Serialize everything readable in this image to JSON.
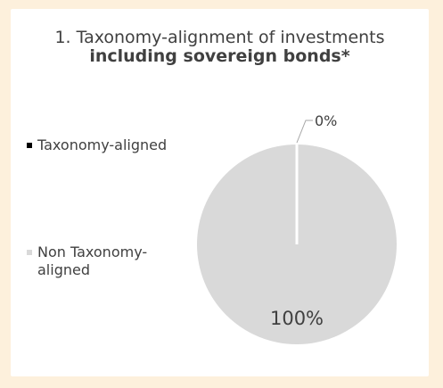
{
  "chart_data": {
    "type": "pie",
    "title_prefix": "1. Taxonomy-alignment of investments ",
    "title_bold": "including sovereign bonds*",
    "categories": [
      "Taxonomy-aligned",
      "Non Taxonomy-aligned"
    ],
    "values": [
      0,
      100
    ],
    "data_labels": [
      "0%",
      "100%"
    ],
    "colors": [
      "#000000",
      "#d9d9d9"
    ],
    "legend_position": "left"
  }
}
